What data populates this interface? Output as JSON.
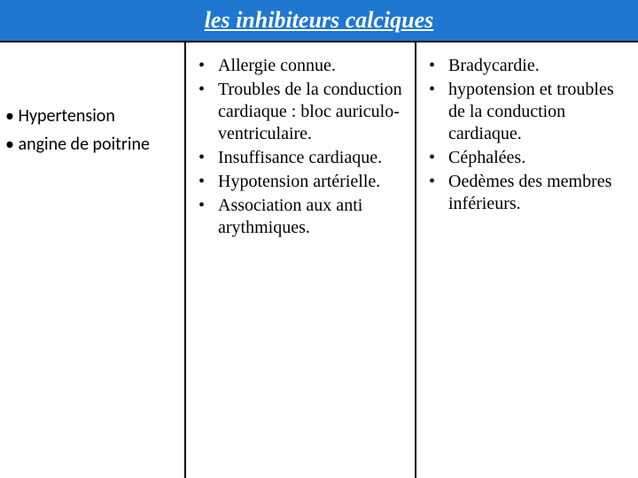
{
  "title": "les inhibiteurs calciques",
  "col1": {
    "items": [
      "Hypertension",
      "angine de poitrine"
    ]
  },
  "col2": {
    "items": [
      "Allergie connue.",
      "Troubles de la conduction cardiaque : bloc auriculo-ventriculaire.",
      "Insuffisance cardiaque.",
      "Hypotension artérielle.",
      "Association aux anti arythmiques."
    ]
  },
  "col3": {
    "items": [
      "Bradycardie.",
      " hypotension et troubles de la conduction cardiaque.",
      "Céphalées.",
      "Oedèmes des membres inférieurs."
    ]
  },
  "colors": {
    "title_bg": "#1f77d0",
    "title_text": "#ffffff",
    "border": "#000000",
    "body_text": "#000000"
  }
}
